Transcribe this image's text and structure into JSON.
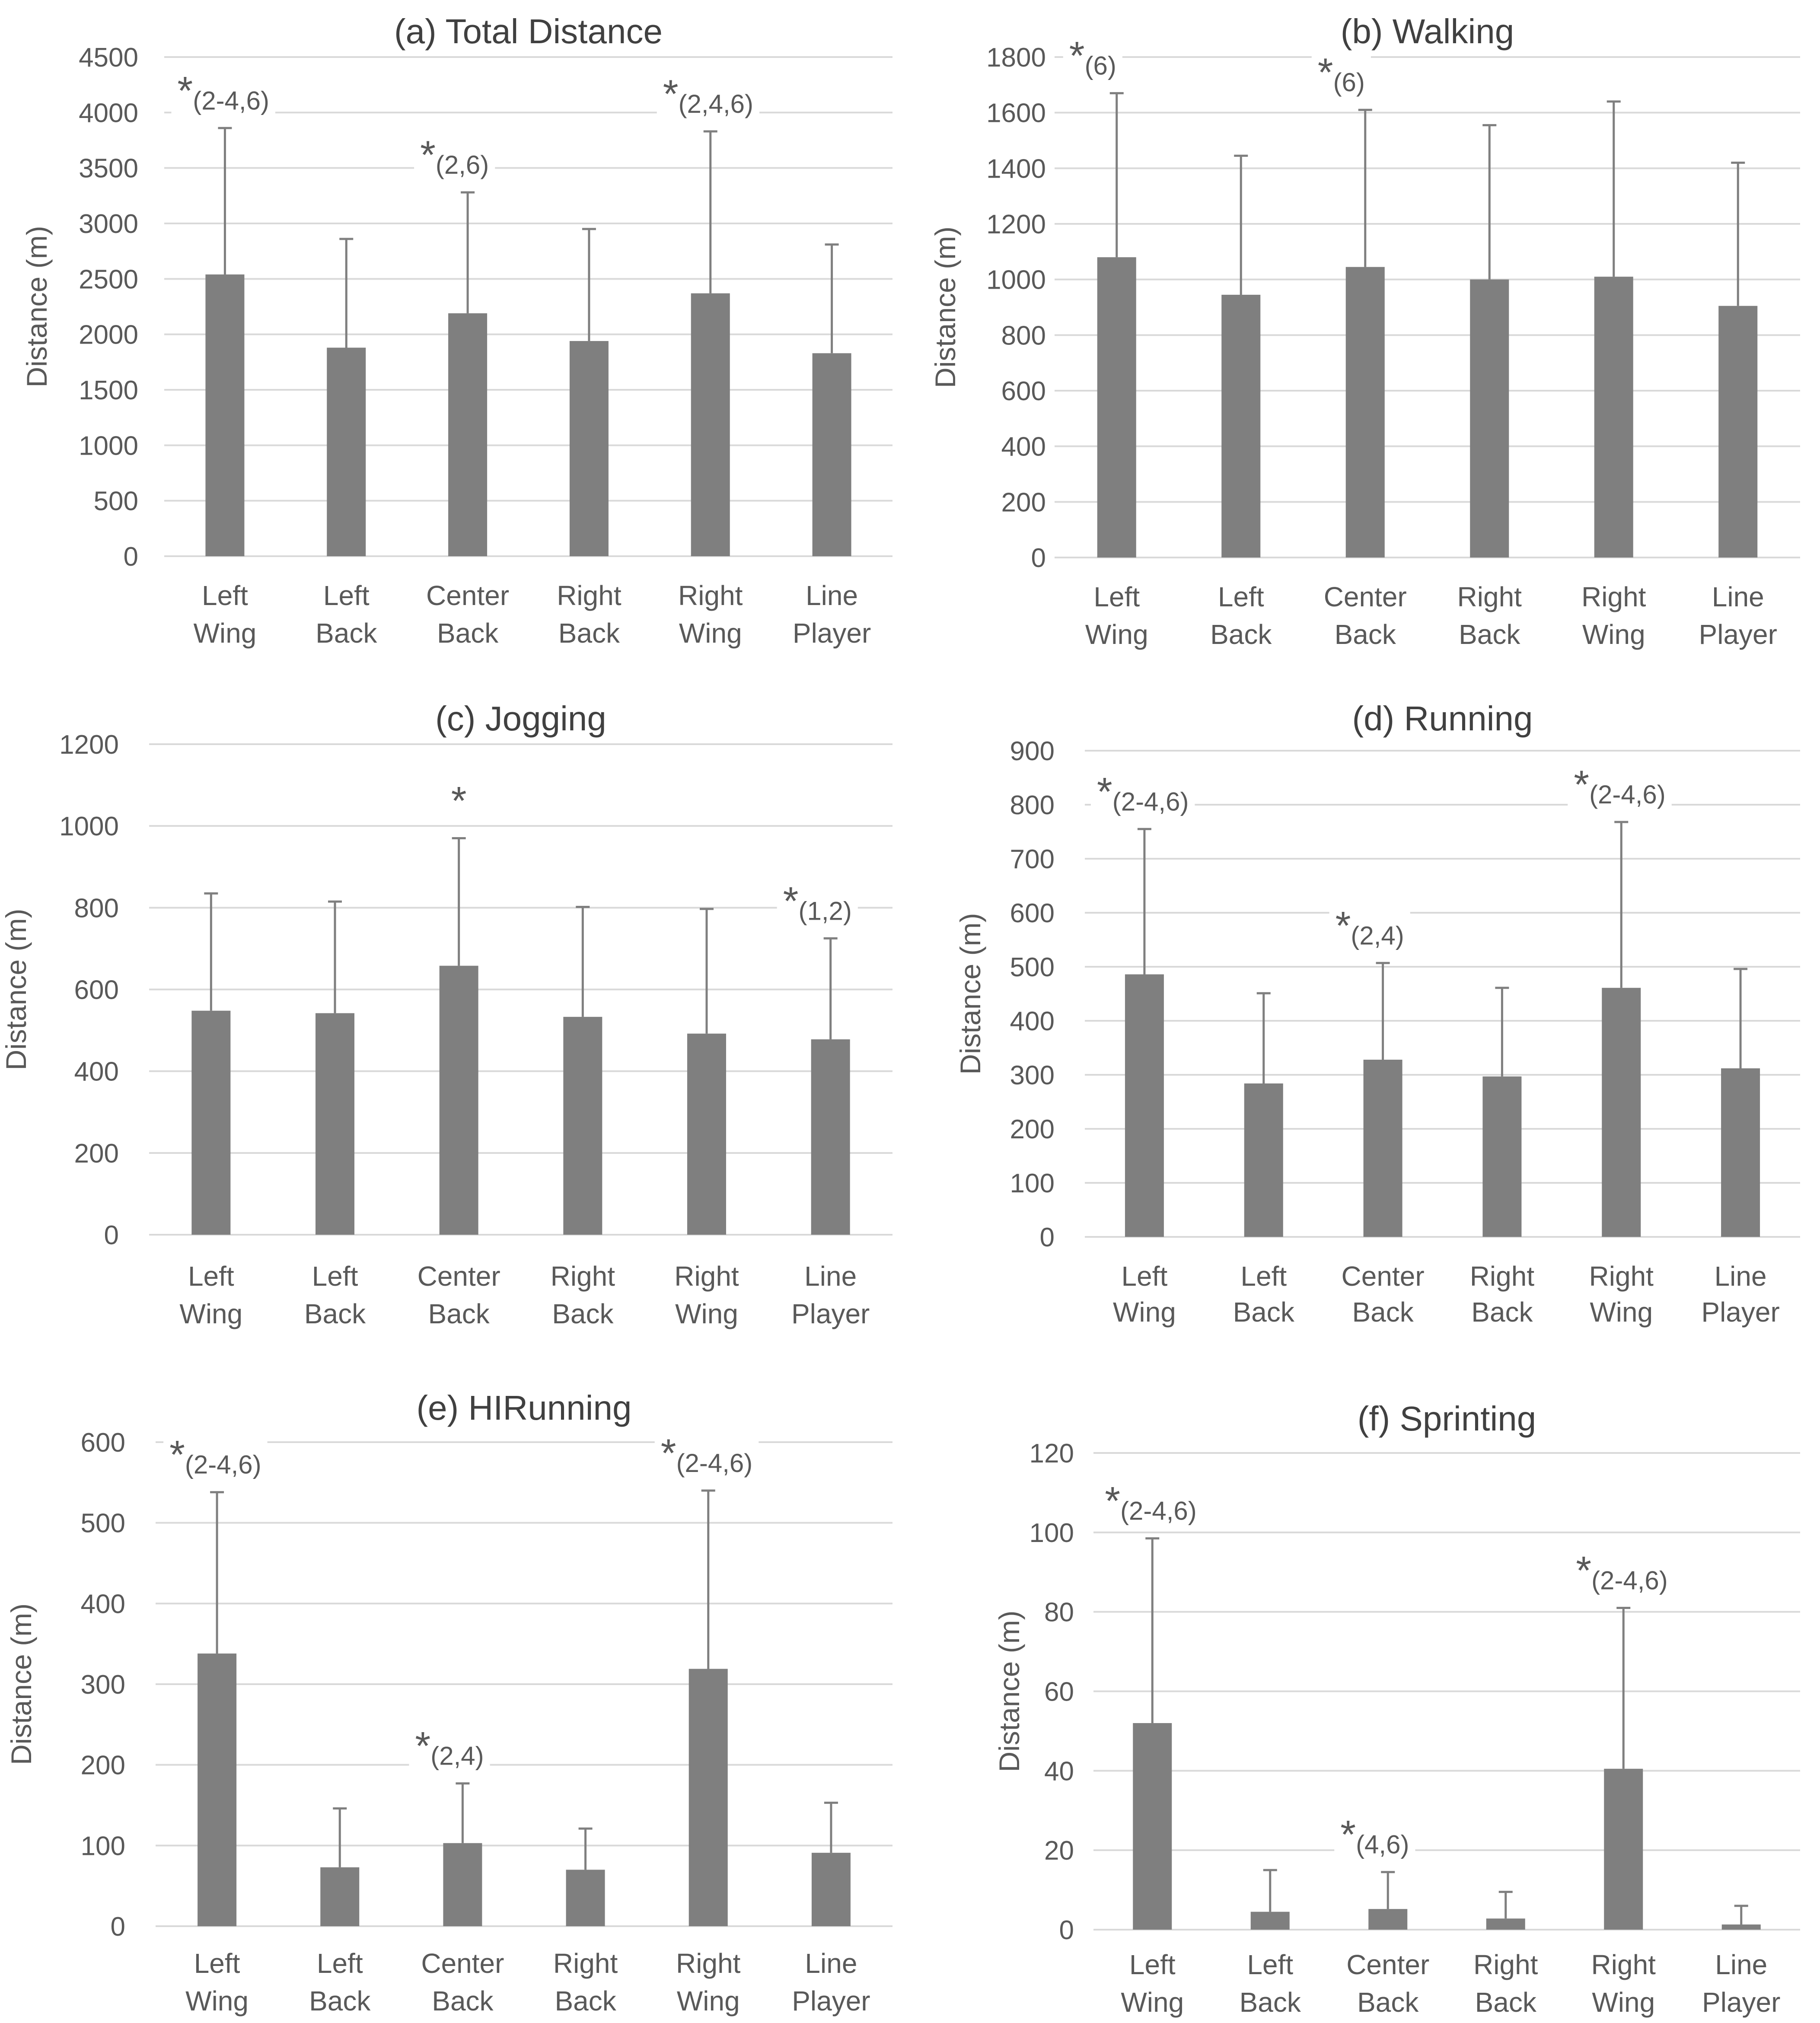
{
  "chart_data": [
    {
      "type": "bar",
      "title": "(a) Total Distance",
      "categories": [
        [
          "Left",
          "Wing"
        ],
        [
          "Left",
          "Back"
        ],
        [
          "Center",
          "Back"
        ],
        [
          "Right",
          "Back"
        ],
        [
          "Right",
          "Wing"
        ],
        [
          "Line",
          "Player"
        ]
      ],
      "values": [
        2540,
        1880,
        2190,
        1940,
        2370,
        1830
      ],
      "error_upper": [
        3860,
        2860,
        3280,
        2950,
        3830,
        2810
      ],
      "annotations": [
        "(2-4,6)",
        "",
        "(2,6)",
        "",
        "(2,4,6)",
        ""
      ],
      "significance_marker": "*",
      "ylabel": "Distance (m)",
      "ylim": [
        0,
        4500
      ],
      "yticks": [
        0,
        500,
        1000,
        1500,
        2000,
        2500,
        3000,
        3500,
        4000,
        4500
      ],
      "grid": true,
      "bar_color": "#7f7f7f"
    },
    {
      "type": "bar",
      "title": "(b) Walking",
      "categories": [
        [
          "Left",
          "Wing"
        ],
        [
          "Left",
          "Back"
        ],
        [
          "Center",
          "Back"
        ],
        [
          "Right",
          "Back"
        ],
        [
          "Right",
          "Wing"
        ],
        [
          "Line",
          "Player"
        ]
      ],
      "values": [
        1080,
        945,
        1045,
        1000,
        1010,
        905
      ],
      "error_upper": [
        1670,
        1445,
        1610,
        1555,
        1640,
        1420
      ],
      "annotations": [
        "(6)",
        "",
        "(6)",
        "",
        "",
        ""
      ],
      "significance_marker": "*",
      "ylabel": "Distance (m)",
      "ylim": [
        0,
        1800
      ],
      "yticks": [
        0,
        200,
        400,
        600,
        800,
        1000,
        1200,
        1400,
        1600,
        1800
      ],
      "grid": true,
      "bar_color": "#7f7f7f"
    },
    {
      "type": "bar",
      "title": "(c) Jogging",
      "categories": [
        [
          "Left",
          "Wing"
        ],
        [
          "Left",
          "Back"
        ],
        [
          "Center",
          "Back"
        ],
        [
          "Right",
          "Back"
        ],
        [
          "Right",
          "Wing"
        ],
        [
          "Line",
          "Player"
        ]
      ],
      "values": [
        548,
        542,
        658,
        533,
        492,
        478
      ],
      "error_upper": [
        835,
        815,
        970,
        802,
        797,
        725
      ],
      "annotations": [
        "",
        "",
        "",
        "",
        "",
        "(1,2)"
      ],
      "star_only": [
        false,
        false,
        true,
        false,
        false,
        false
      ],
      "significance_marker": "*",
      "ylabel": "Distance (m)",
      "ylim": [
        0,
        1200
      ],
      "yticks": [
        0,
        200,
        400,
        600,
        800,
        1000,
        1200
      ],
      "grid": true,
      "bar_color": "#7f7f7f"
    },
    {
      "type": "bar",
      "title": "(d) Running",
      "categories": [
        [
          "Left",
          "Wing"
        ],
        [
          "Left",
          "Back"
        ],
        [
          "Center",
          "Back"
        ],
        [
          "Right",
          "Back"
        ],
        [
          "Right",
          "Wing"
        ],
        [
          "Line",
          "Player"
        ]
      ],
      "values": [
        486,
        284,
        328,
        297,
        461,
        312
      ],
      "error_upper": [
        755,
        451,
        507,
        461,
        768,
        496
      ],
      "annotations": [
        "(2-4,6)",
        "",
        "(2,4)",
        "",
        "(2-4,6)",
        ""
      ],
      "significance_marker": "*",
      "ylabel": "Distance (m)",
      "ylim": [
        0,
        900
      ],
      "yticks": [
        0,
        100,
        200,
        300,
        400,
        500,
        600,
        700,
        800,
        900
      ],
      "grid": true,
      "bar_color": "#7f7f7f"
    },
    {
      "type": "bar",
      "title": "(e) HIRunning",
      "categories": [
        [
          "Left",
          "Wing"
        ],
        [
          "Left",
          "Back"
        ],
        [
          "Center",
          "Back"
        ],
        [
          "Right",
          "Back"
        ],
        [
          "Right",
          "Wing"
        ],
        [
          "Line",
          "Player"
        ]
      ],
      "values": [
        338,
        73,
        103,
        70,
        319,
        91
      ],
      "error_upper": [
        538,
        146,
        177,
        121,
        540,
        153
      ],
      "annotations": [
        "(2-4,6)",
        "",
        "(2,4)",
        "",
        "(2-4,6)",
        ""
      ],
      "significance_marker": "*",
      "ylabel": "Distance (m)",
      "ylim": [
        0,
        600
      ],
      "yticks": [
        0,
        100,
        200,
        300,
        400,
        500,
        600
      ],
      "grid": true,
      "bar_color": "#7f7f7f"
    },
    {
      "type": "bar",
      "title": "(f) Sprinting",
      "categories": [
        [
          "Left",
          "Wing"
        ],
        [
          "Left",
          "Back"
        ],
        [
          "Center",
          "Back"
        ],
        [
          "Right",
          "Back"
        ],
        [
          "Right",
          "Wing"
        ],
        [
          "Line",
          "Player"
        ]
      ],
      "values": [
        52,
        4.5,
        5.2,
        2.8,
        40.5,
        1.3
      ],
      "error_upper": [
        98.5,
        15,
        14.5,
        9.5,
        81,
        6
      ],
      "annotations": [
        "(2-4,6)",
        "",
        "(4,6)",
        "",
        "(2-4,6)",
        ""
      ],
      "significance_marker": "*",
      "ylabel": "Distance (m)",
      "ylim": [
        0,
        120
      ],
      "yticks": [
        0,
        20,
        40,
        60,
        80,
        100,
        120
      ],
      "grid": true,
      "bar_color": "#7f7f7f"
    }
  ]
}
